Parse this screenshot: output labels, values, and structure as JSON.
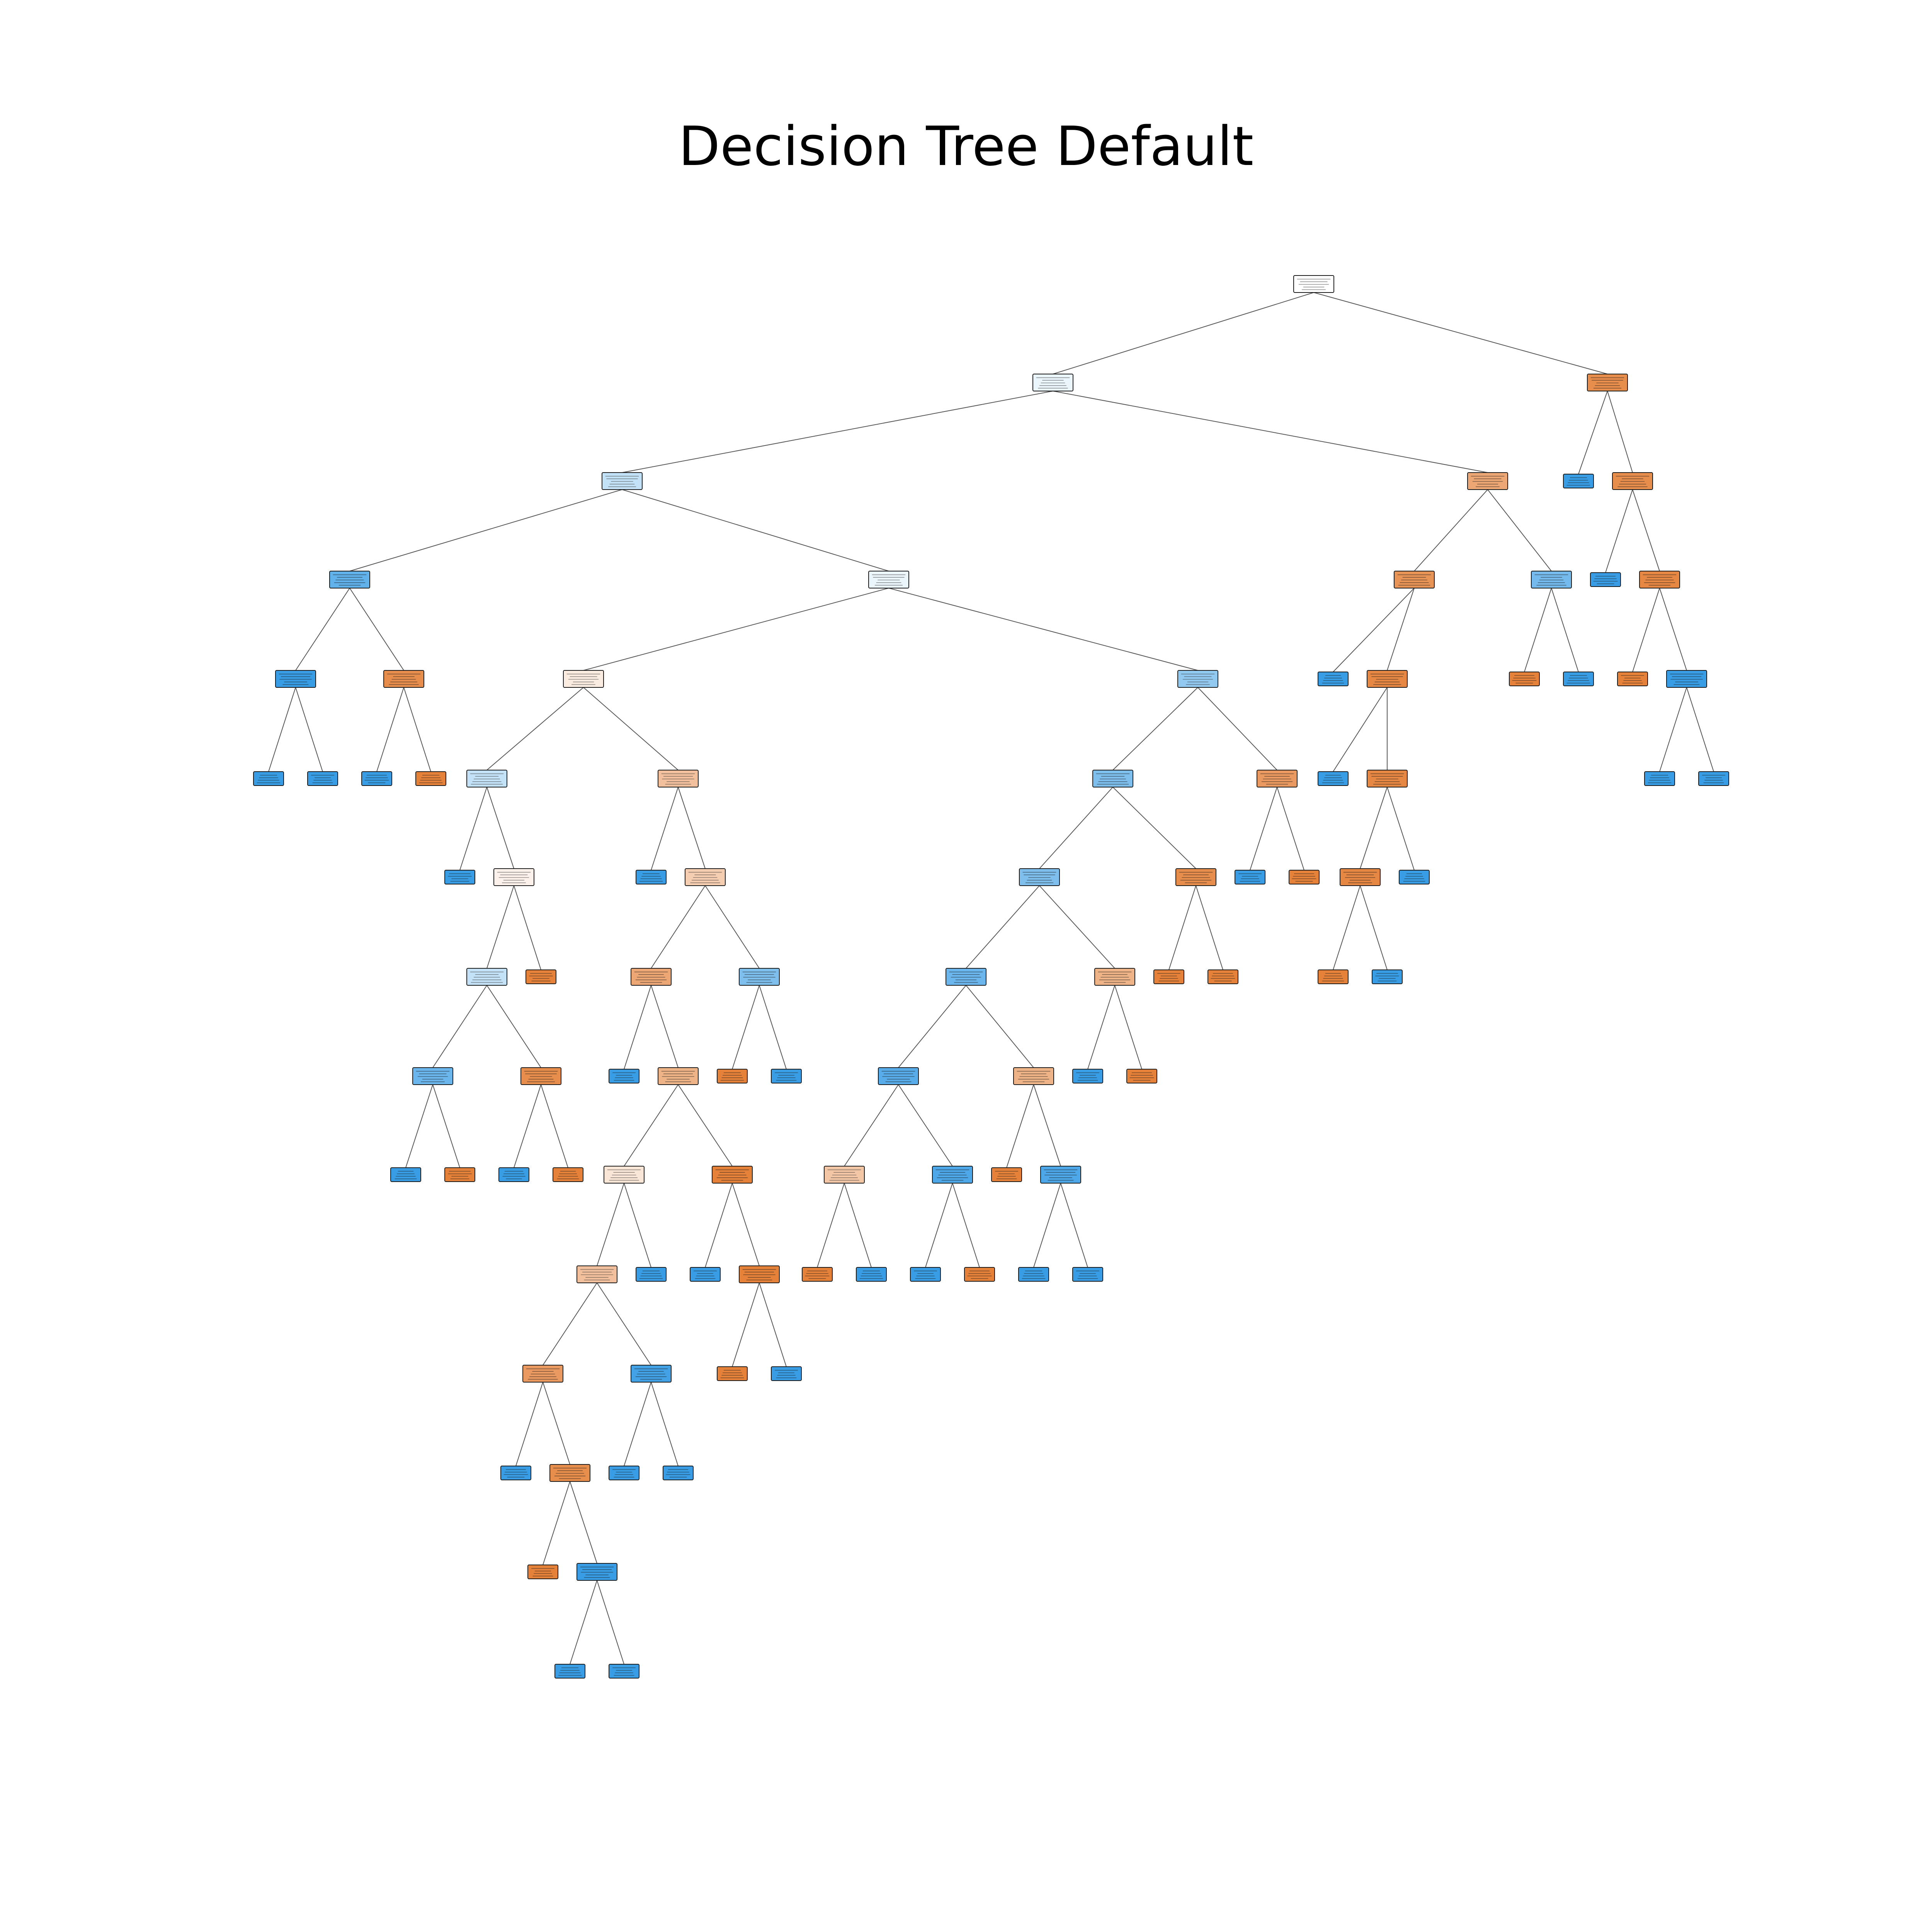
{
  "title": "Decision Tree Default",
  "colors": {
    "class_orange": "#e58139",
    "class_blue": "#399de5",
    "edge": "#555555",
    "border": "#1a1a1a"
  },
  "tree": {
    "nodes": [
      {
        "id": "n0",
        "d": 0,
        "cls": "none",
        "s": 0.0,
        "kids": [
          "n1",
          "n2"
        ]
      },
      {
        "id": "n1",
        "d": 1,
        "cls": "blue",
        "s": 0.1,
        "kids": [
          "n3",
          "n4"
        ]
      },
      {
        "id": "n2",
        "d": 1,
        "cls": "orange",
        "s": 0.9,
        "kids": [
          "n5",
          "n6"
        ]
      },
      {
        "id": "n3",
        "d": 2,
        "cls": "blue",
        "s": 0.3,
        "kids": [
          "n7",
          "n8"
        ]
      },
      {
        "id": "n4",
        "d": 2,
        "cls": "orange",
        "s": 0.7,
        "kids": [
          "n9",
          "n10"
        ]
      },
      {
        "id": "n5",
        "d": 2,
        "cls": "blue",
        "s": 1.0,
        "kids": []
      },
      {
        "id": "n6",
        "d": 2,
        "cls": "orange",
        "s": 0.9,
        "kids": [
          "n11",
          "n12"
        ]
      },
      {
        "id": "n7",
        "d": 3,
        "cls": "blue",
        "s": 0.8,
        "kids": [
          "n13",
          "n14"
        ]
      },
      {
        "id": "n8",
        "d": 3,
        "cls": "blue",
        "s": 0.1,
        "kids": [
          "n15",
          "n16"
        ]
      },
      {
        "id": "n9",
        "d": 3,
        "cls": "orange",
        "s": 0.85,
        "kids": [
          "n17",
          "n18"
        ]
      },
      {
        "id": "n10",
        "d": 3,
        "cls": "blue",
        "s": 0.7,
        "kids": [
          "n19",
          "n20"
        ]
      },
      {
        "id": "n11",
        "d": 3,
        "cls": "blue",
        "s": 1.0,
        "kids": []
      },
      {
        "id": "n12",
        "d": 3,
        "cls": "orange",
        "s": 0.95,
        "kids": [
          "n21",
          "n22"
        ]
      },
      {
        "id": "n13",
        "d": 4,
        "cls": "blue",
        "s": 1.0,
        "kids": [
          "n23",
          "n24"
        ]
      },
      {
        "id": "n14",
        "d": 4,
        "cls": "orange",
        "s": 0.9,
        "kids": [
          "n25",
          "n26"
        ]
      },
      {
        "id": "n15",
        "d": 4,
        "cls": "orange",
        "s": 0.15,
        "kids": [
          "n27",
          "n28"
        ]
      },
      {
        "id": "n16",
        "d": 4,
        "cls": "blue",
        "s": 0.55,
        "kids": [
          "n29",
          "n30"
        ]
      },
      {
        "id": "n17",
        "d": 4,
        "cls": "blue",
        "s": 1.0,
        "kids": []
      },
      {
        "id": "n18",
        "d": 4,
        "cls": "orange",
        "s": 0.95,
        "kids": [
          "n31",
          "n32"
        ]
      },
      {
        "id": "n19",
        "d": 4,
        "cls": "orange",
        "s": 1.0,
        "kids": []
      },
      {
        "id": "n20",
        "d": 4,
        "cls": "blue",
        "s": 1.0,
        "kids": []
      },
      {
        "id": "n21",
        "d": 4,
        "cls": "orange",
        "s": 1.0,
        "kids": []
      },
      {
        "id": "n22",
        "d": 4,
        "cls": "blue",
        "s": 1.0,
        "kids": [
          "n33",
          "n34"
        ]
      },
      {
        "id": "n23",
        "d": 5,
        "cls": "blue",
        "s": 1.0,
        "kids": []
      },
      {
        "id": "n24",
        "d": 5,
        "cls": "blue",
        "s": 1.0,
        "kids": []
      },
      {
        "id": "n25",
        "d": 5,
        "cls": "blue",
        "s": 1.0,
        "kids": []
      },
      {
        "id": "n26",
        "d": 5,
        "cls": "orange",
        "s": 1.0,
        "kids": []
      },
      {
        "id": "n27",
        "d": 5,
        "cls": "blue",
        "s": 0.3,
        "kids": [
          "n35",
          "n36"
        ]
      },
      {
        "id": "n28",
        "d": 5,
        "cls": "orange",
        "s": 0.5,
        "kids": [
          "n37",
          "n38"
        ]
      },
      {
        "id": "n29",
        "d": 5,
        "cls": "blue",
        "s": 0.65,
        "kids": [
          "n39",
          "n40"
        ]
      },
      {
        "id": "n30",
        "d": 5,
        "cls": "orange",
        "s": 0.8,
        "kids": [
          "n41",
          "n42"
        ]
      },
      {
        "id": "n31",
        "d": 5,
        "cls": "blue",
        "s": 1.0,
        "kids": []
      },
      {
        "id": "n32",
        "d": 5,
        "cls": "orange",
        "s": 0.95,
        "kids": [
          "n43",
          "n44"
        ]
      },
      {
        "id": "n33",
        "d": 5,
        "cls": "blue",
        "s": 1.0,
        "kids": []
      },
      {
        "id": "n34",
        "d": 5,
        "cls": "blue",
        "s": 1.0,
        "kids": []
      },
      {
        "id": "n35",
        "d": 6,
        "cls": "blue",
        "s": 1.0,
        "kids": []
      },
      {
        "id": "n36",
        "d": 6,
        "cls": "orange",
        "s": 0.1,
        "kids": [
          "n45",
          "n46"
        ]
      },
      {
        "id": "n37",
        "d": 6,
        "cls": "blue",
        "s": 1.0,
        "kids": []
      },
      {
        "id": "n38",
        "d": 6,
        "cls": "orange",
        "s": 0.4,
        "kids": [
          "n47",
          "n48"
        ]
      },
      {
        "id": "n39",
        "d": 6,
        "cls": "blue",
        "s": 0.65,
        "kids": [
          "n49",
          "n50"
        ]
      },
      {
        "id": "n40",
        "d": 6,
        "cls": "orange",
        "s": 0.9,
        "kids": [
          "n51",
          "n52"
        ]
      },
      {
        "id": "n41",
        "d": 6,
        "cls": "blue",
        "s": 1.0,
        "kids": []
      },
      {
        "id": "n42",
        "d": 6,
        "cls": "orange",
        "s": 1.0,
        "kids": []
      },
      {
        "id": "n43",
        "d": 6,
        "cls": "orange",
        "s": 0.95,
        "kids": [
          "n53",
          "n54"
        ]
      },
      {
        "id": "n44",
        "d": 6,
        "cls": "blue",
        "s": 1.0,
        "kids": []
      },
      {
        "id": "n45",
        "d": 7,
        "cls": "blue",
        "s": 0.3,
        "kids": [
          "n55",
          "n56"
        ]
      },
      {
        "id": "n46",
        "d": 7,
        "cls": "orange",
        "s": 1.0,
        "kids": []
      },
      {
        "id": "n47",
        "d": 7,
        "cls": "orange",
        "s": 0.7,
        "kids": [
          "n57",
          "n58"
        ]
      },
      {
        "id": "n48",
        "d": 7,
        "cls": "blue",
        "s": 0.65,
        "kids": [
          "n59",
          "n60"
        ]
      },
      {
        "id": "n49",
        "d": 7,
        "cls": "blue",
        "s": 0.75,
        "kids": [
          "n61",
          "n62"
        ]
      },
      {
        "id": "n50",
        "d": 7,
        "cls": "orange",
        "s": 0.6,
        "kids": [
          "n63",
          "n64"
        ]
      },
      {
        "id": "n51",
        "d": 7,
        "cls": "orange",
        "s": 1.0,
        "kids": []
      },
      {
        "id": "n52",
        "d": 7,
        "cls": "orange",
        "s": 1.0,
        "kids": []
      },
      {
        "id": "n53",
        "d": 7,
        "cls": "orange",
        "s": 1.0,
        "kids": []
      },
      {
        "id": "n54",
        "d": 7,
        "cls": "blue",
        "s": 1.0,
        "kids": []
      },
      {
        "id": "n55",
        "d": 8,
        "cls": "blue",
        "s": 0.75,
        "kids": [
          "n65",
          "n66"
        ]
      },
      {
        "id": "n56",
        "d": 8,
        "cls": "orange",
        "s": 0.9,
        "kids": [
          "n67",
          "n68"
        ]
      },
      {
        "id": "n57",
        "d": 8,
        "cls": "blue",
        "s": 1.0,
        "kids": []
      },
      {
        "id": "n58",
        "d": 8,
        "cls": "orange",
        "s": 0.6,
        "kids": [
          "n69",
          "n70"
        ]
      },
      {
        "id": "n59",
        "d": 8,
        "cls": "orange",
        "s": 1.0,
        "kids": []
      },
      {
        "id": "n60",
        "d": 8,
        "cls": "blue",
        "s": 1.0,
        "kids": []
      },
      {
        "id": "n61",
        "d": 8,
        "cls": "blue",
        "s": 0.85,
        "kids": [
          "n71",
          "n72"
        ]
      },
      {
        "id": "n62",
        "d": 8,
        "cls": "orange",
        "s": 0.6,
        "kids": [
          "n73",
          "n74"
        ]
      },
      {
        "id": "n63",
        "d": 8,
        "cls": "blue",
        "s": 1.0,
        "kids": []
      },
      {
        "id": "n64",
        "d": 8,
        "cls": "orange",
        "s": 1.0,
        "kids": []
      },
      {
        "id": "n65",
        "d": 9,
        "cls": "blue",
        "s": 1.0,
        "kids": []
      },
      {
        "id": "n66",
        "d": 9,
        "cls": "orange",
        "s": 1.0,
        "kids": []
      },
      {
        "id": "n67",
        "d": 9,
        "cls": "blue",
        "s": 1.0,
        "kids": []
      },
      {
        "id": "n68",
        "d": 9,
        "cls": "orange",
        "s": 1.0,
        "kids": []
      },
      {
        "id": "n69",
        "d": 9,
        "cls": "orange",
        "s": 0.2,
        "kids": [
          "n75",
          "n76"
        ]
      },
      {
        "id": "n70",
        "d": 9,
        "cls": "orange",
        "s": 1.0,
        "kids": [
          "n77",
          "n78"
        ]
      },
      {
        "id": "n71",
        "d": 9,
        "cls": "orange",
        "s": 0.45,
        "kids": [
          "n79",
          "n80"
        ]
      },
      {
        "id": "n72",
        "d": 9,
        "cls": "blue",
        "s": 0.9,
        "kids": [
          "n81",
          "n82"
        ]
      },
      {
        "id": "n73",
        "d": 9,
        "cls": "orange",
        "s": 1.0,
        "kids": []
      },
      {
        "id": "n74",
        "d": 9,
        "cls": "blue",
        "s": 0.9,
        "kids": [
          "n83",
          "n84"
        ]
      },
      {
        "id": "n75",
        "d": 10,
        "cls": "orange",
        "s": 0.5,
        "kids": [
          "n85",
          "n86"
        ]
      },
      {
        "id": "n76",
        "d": 10,
        "cls": "blue",
        "s": 1.0,
        "kids": []
      },
      {
        "id": "n77",
        "d": 10,
        "cls": "blue",
        "s": 1.0,
        "kids": []
      },
      {
        "id": "n78",
        "d": 10,
        "cls": "orange",
        "s": 1.0,
        "kids": [
          "n87",
          "n88"
        ]
      },
      {
        "id": "n79",
        "d": 10,
        "cls": "orange",
        "s": 1.0,
        "kids": []
      },
      {
        "id": "n80",
        "d": 10,
        "cls": "blue",
        "s": 1.0,
        "kids": []
      },
      {
        "id": "n81",
        "d": 10,
        "cls": "blue",
        "s": 1.0,
        "kids": []
      },
      {
        "id": "n82",
        "d": 10,
        "cls": "orange",
        "s": 1.0,
        "kids": []
      },
      {
        "id": "n83",
        "d": 10,
        "cls": "blue",
        "s": 1.0,
        "kids": []
      },
      {
        "id": "n84",
        "d": 10,
        "cls": "blue",
        "s": 1.0,
        "kids": []
      },
      {
        "id": "n85",
        "d": 11,
        "cls": "orange",
        "s": 0.8,
        "kids": [
          "n89",
          "n90"
        ]
      },
      {
        "id": "n86",
        "d": 11,
        "cls": "blue",
        "s": 0.95,
        "kids": [
          "n91",
          "n92"
        ]
      },
      {
        "id": "n87",
        "d": 11,
        "cls": "orange",
        "s": 1.0,
        "kids": []
      },
      {
        "id": "n88",
        "d": 11,
        "cls": "blue",
        "s": 1.0,
        "kids": []
      },
      {
        "id": "n89",
        "d": 12,
        "cls": "blue",
        "s": 1.0,
        "kids": []
      },
      {
        "id": "n90",
        "d": 12,
        "cls": "orange",
        "s": 0.9,
        "kids": [
          "n93",
          "n94"
        ]
      },
      {
        "id": "n91",
        "d": 12,
        "cls": "blue",
        "s": 1.0,
        "kids": []
      },
      {
        "id": "n92",
        "d": 12,
        "cls": "blue",
        "s": 1.0,
        "kids": []
      },
      {
        "id": "n93",
        "d": 13,
        "cls": "orange",
        "s": 1.0,
        "kids": []
      },
      {
        "id": "n94",
        "d": 13,
        "cls": "blue",
        "s": 1.0,
        "kids": [
          "n95",
          "n96"
        ]
      },
      {
        "id": "n95",
        "d": 14,
        "cls": "blue",
        "s": 1.0,
        "kids": []
      },
      {
        "id": "n96",
        "d": 14,
        "cls": "blue",
        "s": 1.0,
        "kids": []
      }
    ]
  }
}
